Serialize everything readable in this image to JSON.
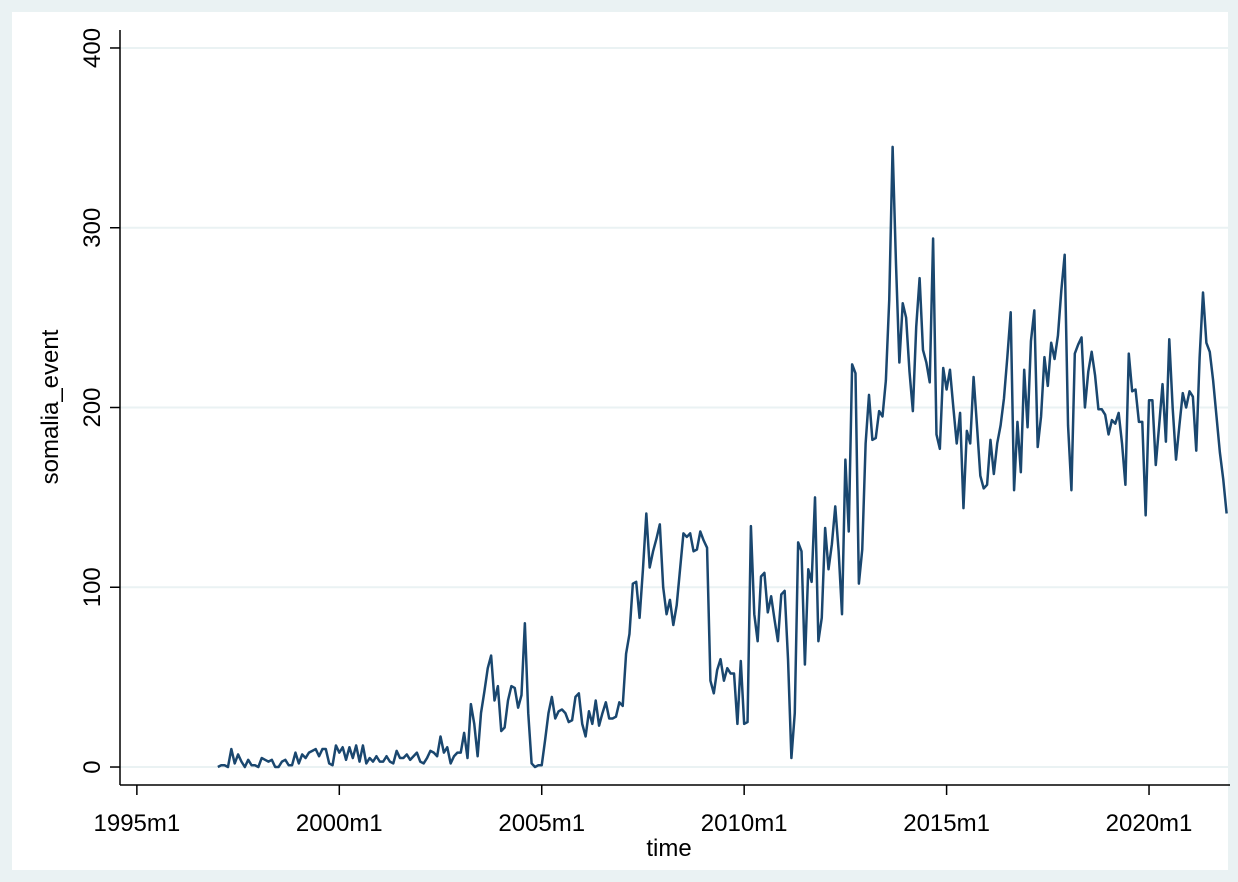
{
  "chart_data": {
    "type": "line",
    "xlabel": "time",
    "ylabel": "somalia_event",
    "x": [
      444,
      445,
      446,
      447,
      448,
      449,
      450,
      451,
      452,
      453,
      454,
      455,
      456,
      457,
      458,
      459,
      460,
      461,
      462,
      463,
      464,
      465,
      466,
      467,
      468,
      469,
      470,
      471,
      472,
      473,
      474,
      475,
      476,
      477,
      478,
      479,
      480,
      481,
      482,
      483,
      484,
      485,
      486,
      487,
      488,
      489,
      490,
      491,
      492,
      493,
      494,
      495,
      496,
      497,
      498,
      499,
      500,
      501,
      502,
      503,
      504,
      505,
      506,
      507,
      508,
      509,
      510,
      511,
      512,
      513,
      514,
      515,
      516,
      517,
      518,
      519,
      520,
      521,
      522,
      523,
      524,
      525,
      526,
      527,
      528,
      529,
      530,
      531,
      532,
      533,
      534,
      535,
      536,
      537,
      538,
      539,
      540,
      541,
      542,
      543,
      544,
      545,
      546,
      547,
      548,
      549,
      550,
      551,
      552,
      553,
      554,
      555,
      556,
      557,
      558,
      559,
      560,
      561,
      562,
      563,
      564,
      565,
      566,
      567,
      568,
      569,
      570,
      571,
      572,
      573,
      574,
      575,
      576,
      577,
      578,
      579,
      580,
      581,
      582,
      583,
      584,
      585,
      586,
      587,
      588,
      589,
      590,
      591,
      592,
      593,
      594,
      595,
      596,
      597,
      598,
      599,
      600,
      601,
      602,
      603,
      604,
      605,
      606,
      607,
      608,
      609,
      610,
      611,
      612,
      613,
      614,
      615,
      616,
      617,
      618,
      619,
      620,
      621,
      622,
      623,
      624,
      625,
      626,
      627,
      628,
      629,
      630,
      631,
      632,
      633,
      634,
      635,
      636,
      637,
      638,
      639,
      640,
      641,
      642,
      643,
      644,
      645,
      646,
      647,
      648,
      649,
      650,
      651,
      652,
      653,
      654,
      655,
      656,
      657,
      658,
      659,
      660,
      661,
      662,
      663,
      664,
      665,
      666,
      667,
      668,
      669,
      670,
      671,
      672,
      673,
      674,
      675,
      676,
      677,
      678,
      679,
      680,
      681,
      682,
      683,
      684,
      685,
      686,
      687,
      688,
      689,
      690,
      691,
      692,
      693,
      694,
      695,
      696,
      697,
      698,
      699,
      700,
      701,
      702,
      703,
      704,
      705,
      706,
      707,
      708,
      709,
      710,
      711,
      712,
      713,
      714,
      715,
      716,
      717,
      718,
      719,
      720,
      721,
      722,
      723,
      724,
      725,
      726,
      727,
      728,
      729,
      730,
      731,
      732,
      733,
      734,
      735,
      736,
      737,
      738,
      739,
      740,
      741,
      742,
      743
    ],
    "series": [
      {
        "name": "somalia_event",
        "color": "#1a476f",
        "values": [
          0,
          1,
          1,
          0,
          10,
          2,
          7,
          3,
          0,
          4,
          1,
          1,
          0,
          5,
          4,
          3,
          4,
          0,
          0,
          3,
          4,
          1,
          1,
          8,
          2,
          7,
          5,
          8,
          9,
          10,
          6,
          10,
          10,
          2,
          1,
          12,
          8,
          11,
          4,
          11,
          5,
          12,
          3,
          12,
          2,
          5,
          3,
          6,
          3,
          3,
          6,
          3,
          2,
          9,
          5,
          5,
          7,
          4,
          6,
          8,
          3,
          2,
          5,
          9,
          8,
          6,
          17,
          8,
          11,
          2,
          6,
          8,
          8,
          19,
          5,
          35,
          24,
          6,
          30,
          42,
          55,
          62,
          37,
          45,
          20,
          22,
          37,
          45,
          44,
          33,
          40,
          80,
          30,
          2,
          0,
          1,
          1,
          15,
          30,
          39,
          27,
          31,
          32,
          30,
          25,
          26,
          39,
          41,
          24,
          17,
          31,
          24,
          37,
          23,
          30,
          36,
          27,
          27,
          28,
          36,
          34,
          63,
          74,
          102,
          103,
          83,
          110,
          141,
          111,
          120,
          127,
          135,
          100,
          85,
          93,
          79,
          90,
          110,
          130,
          128,
          130,
          120,
          121,
          131,
          126,
          122,
          48,
          41,
          54,
          60,
          48,
          55,
          52,
          52,
          24,
          59,
          24,
          25,
          134,
          85,
          70,
          106,
          108,
          86,
          95,
          82,
          70,
          96,
          98,
          60,
          5,
          30,
          125,
          120,
          57,
          110,
          103,
          150,
          70,
          83,
          133,
          110,
          124,
          145,
          120,
          85,
          171,
          131,
          224,
          219,
          102,
          121,
          180,
          207,
          182,
          183,
          198,
          195,
          215,
          260,
          345,
          280,
          225,
          258,
          250,
          220,
          198,
          245,
          272,
          232,
          225,
          214,
          294,
          185,
          177,
          222,
          210,
          221,
          200,
          180,
          197,
          144,
          187,
          180,
          217,
          190,
          162,
          155,
          157,
          182,
          163,
          180,
          190,
          205,
          228,
          253,
          154,
          192,
          164,
          221,
          189,
          237,
          254,
          178,
          195,
          228,
          212,
          236,
          227,
          240,
          265,
          285,
          190,
          154,
          230,
          235,
          239,
          200,
          220,
          231,
          218,
          199,
          199,
          196,
          185,
          193,
          191,
          197,
          180,
          157,
          230,
          209,
          210,
          192,
          192,
          140,
          204,
          204,
          168,
          190,
          213,
          181,
          238,
          200,
          171,
          190,
          208,
          200,
          209,
          206,
          176,
          228,
          264,
          236,
          231,
          215,
          195,
          175,
          160,
          141
        ]
      }
    ],
    "xlim": [
      415,
      744
    ],
    "xticks": [
      {
        "value": 420,
        "label": "1995m1"
      },
      {
        "value": 480,
        "label": "2000m1"
      },
      {
        "value": 540,
        "label": "2005m1"
      },
      {
        "value": 600,
        "label": "2010m1"
      },
      {
        "value": 660,
        "label": "2015m1"
      },
      {
        "value": 720,
        "label": "2020m1"
      }
    ],
    "ylim": [
      -10,
      410
    ],
    "yticks": [
      0,
      100,
      200,
      300,
      400
    ],
    "grid": true
  }
}
